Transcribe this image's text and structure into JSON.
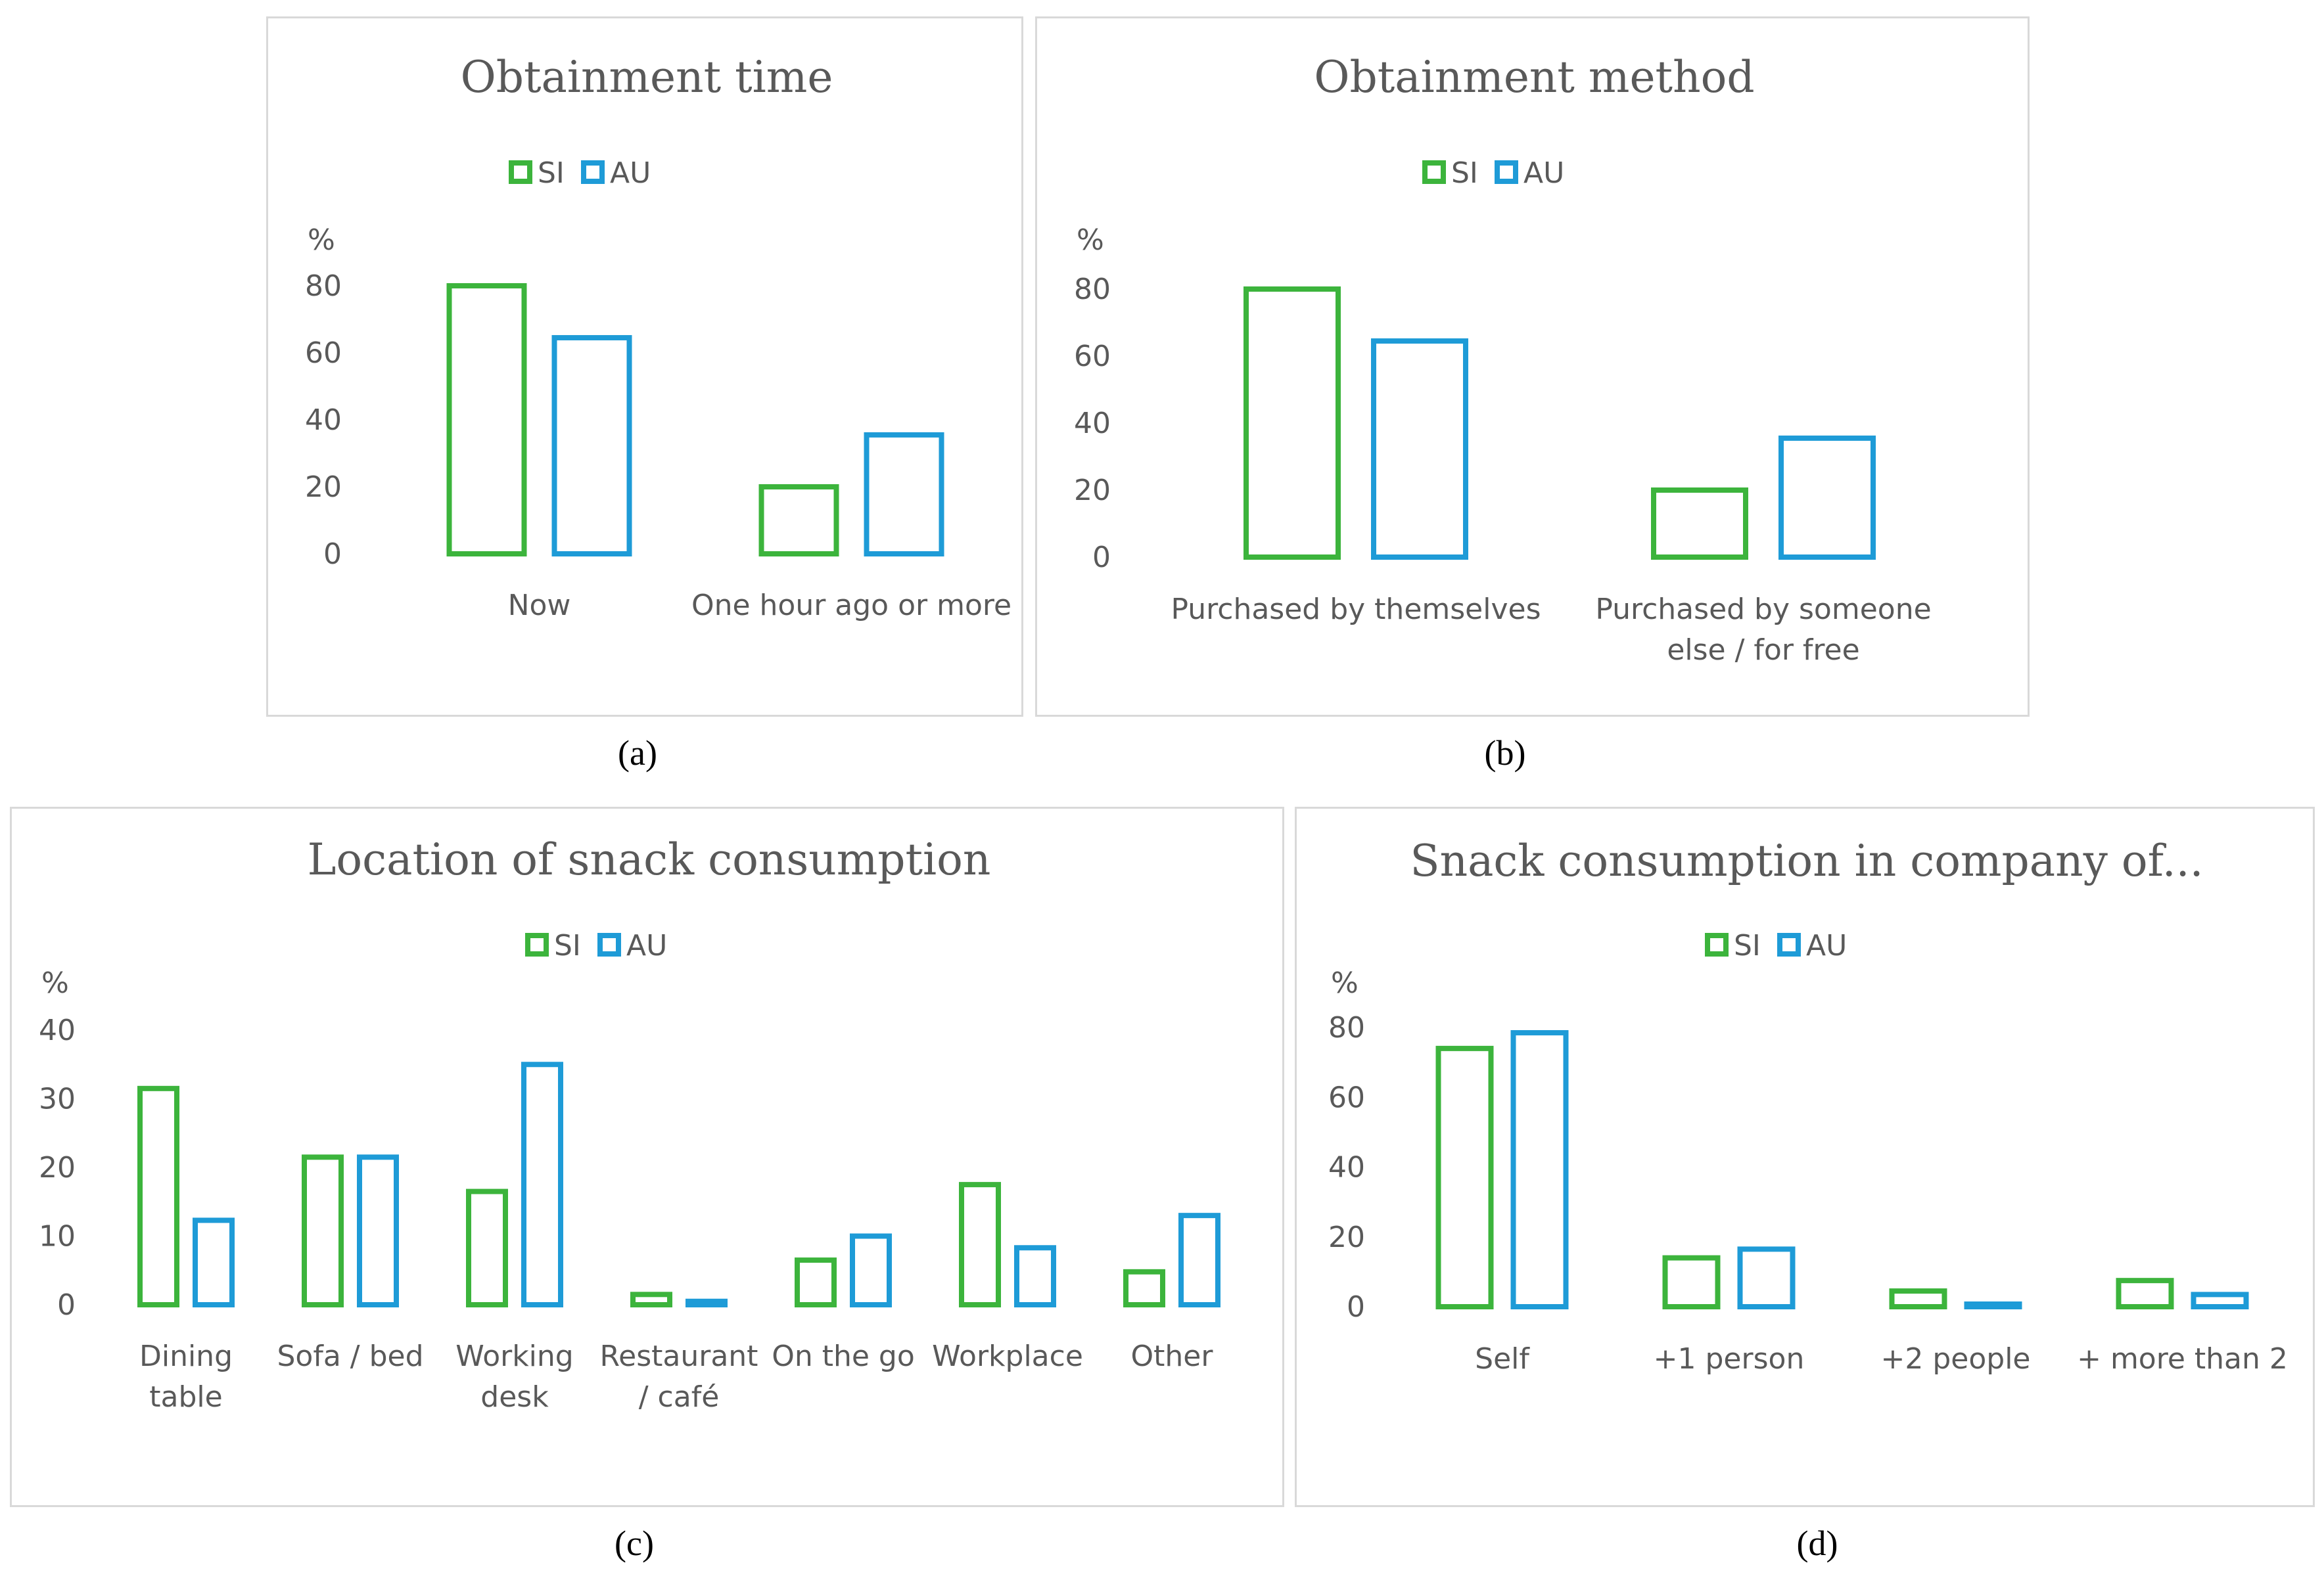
{
  "colors": {
    "SI": "#3cb43c",
    "AU": "#1e9bd7",
    "text": "#595959",
    "border": "#d9d9d9"
  },
  "chart_data": [
    {
      "type": "bar",
      "title": "Obtainment time",
      "caption": "(a)",
      "ylabel": "%",
      "ylim": [
        0,
        80
      ],
      "yticks": [
        "0",
        "20",
        "40",
        "60",
        "80"
      ],
      "legend": [
        "SI",
        "AU"
      ],
      "legend_position": "top-center",
      "categories": [
        [
          "Now"
        ],
        [
          "One hour ago or more"
        ]
      ],
      "series": [
        {
          "name": "SI",
          "values": [
            80,
            20
          ]
        },
        {
          "name": "AU",
          "values": [
            64.5,
            35.5
          ]
        }
      ]
    },
    {
      "type": "bar",
      "title": "Obtainment method",
      "caption": "(b)",
      "ylabel": "%",
      "ylim": [
        0,
        80
      ],
      "yticks": [
        "0",
        "20",
        "40",
        "60",
        "80"
      ],
      "legend": [
        "SI",
        "AU"
      ],
      "legend_position": "top-center",
      "categories": [
        [
          "Purchased by themselves"
        ],
        [
          "Purchased by someone",
          "else / for free"
        ]
      ],
      "series": [
        {
          "name": "SI",
          "values": [
            80,
            20
          ]
        },
        {
          "name": "AU",
          "values": [
            64.5,
            35.5
          ]
        }
      ]
    },
    {
      "type": "bar",
      "title": "Location of snack consumption",
      "caption": "(c)",
      "ylabel": "%",
      "ylim": [
        0,
        40
      ],
      "yticks": [
        "0",
        "10",
        "20",
        "30",
        "40"
      ],
      "legend": [
        "SI",
        "AU"
      ],
      "legend_position": "top-center",
      "categories": [
        [
          "Dining",
          "table"
        ],
        [
          "Sofa / bed"
        ],
        [
          "Working",
          "desk"
        ],
        [
          "Restaurant",
          "/ café"
        ],
        [
          "On the go"
        ],
        [
          "Workplace"
        ],
        [
          "Other"
        ]
      ],
      "series": [
        {
          "name": "SI",
          "values": [
            31.5,
            21.5,
            16.5,
            1.5,
            6.5,
            17.5,
            4.8
          ]
        },
        {
          "name": "AU",
          "values": [
            12.3,
            21.5,
            35,
            0.5,
            10,
            8.3,
            13
          ]
        }
      ]
    },
    {
      "type": "bar",
      "title": "Snack consumption in company of...",
      "caption": "(d)",
      "ylabel": "%",
      "ylim": [
        0,
        80
      ],
      "yticks": [
        "0",
        "20",
        "40",
        "60",
        "80"
      ],
      "legend": [
        "SI",
        "AU"
      ],
      "legend_position": "top-center",
      "categories": [
        [
          "Self"
        ],
        [
          "+1 person"
        ],
        [
          "+2 people"
        ],
        [
          "+ more than 2"
        ]
      ],
      "series": [
        {
          "name": "SI",
          "values": [
            74,
            14,
            4.5,
            7.5
          ]
        },
        {
          "name": "AU",
          "values": [
            78.5,
            16.5,
            0.5,
            3.5
          ]
        }
      ]
    }
  ]
}
